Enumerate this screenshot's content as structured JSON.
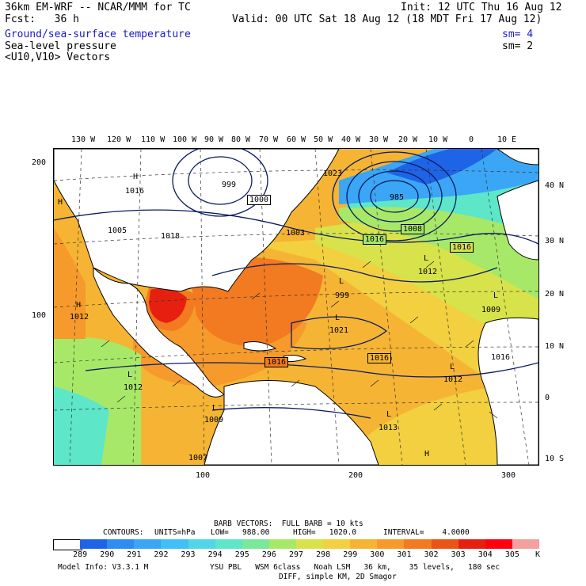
{
  "header": {
    "model_line": "36km EM-WRF -- NCAR/MMM for TC",
    "init_line": "Init: 12 UTC Thu 16 Aug 12",
    "fcst_line": "Fcst:   36 h",
    "valid_line": "Valid: 00 UTC Sat 18 Aug 12 (18 MDT Fri 17 Aug 12)",
    "field1": "Ground/sea-surface temperature",
    "field1_sm": "sm= 4",
    "field2": "Sea-level pressure",
    "field2_sm": "sm= 2",
    "field3": "<U10,V10> Vectors"
  },
  "top_lon_labels": [
    "130 W",
    "120 W",
    "110 W",
    "100 W",
    "90 W",
    "80 W",
    "70 W",
    "60 W",
    "50 W",
    "40 W",
    "30 W",
    "20 W",
    "10 W",
    "0",
    "10 E"
  ],
  "right_lat_labels": [
    "40 N",
    "30 N",
    "20 N",
    "10 N",
    "0",
    "10 S"
  ],
  "left_axis_labels": [
    "200",
    "100"
  ],
  "bottom_axis_labels": [
    "100",
    "200",
    "300"
  ],
  "pressure_labels": {
    "boxed": [
      "1000",
      "1008",
      "1016",
      "1016",
      "1016",
      "1016"
    ],
    "plain": [
      "1023",
      "985",
      "999",
      "1016",
      "1005",
      "1018",
      "1003",
      "1012",
      "1012",
      "999",
      "1021",
      "1009",
      "1016",
      "1012",
      "1013",
      "1012",
      "1009",
      "1007",
      "1012"
    ]
  },
  "highs_lows": [
    "H",
    "H",
    "H",
    "L",
    "L",
    "L",
    "L",
    "L",
    "L",
    "L",
    "L",
    "H",
    "L",
    "L",
    "L",
    "H"
  ],
  "barb_info": "BARB VECTORS:  FULL BARB = 10 kts",
  "contours_info": {
    "label": "CONTOURS:",
    "units": "UNITS=hPa",
    "low": "LOW=   988.00",
    "high": "HIGH=   1020.0",
    "interval": "INTERVAL=    4.0000"
  },
  "colorbar": {
    "unit": "K",
    "labels": [
      "289",
      "290",
      "291",
      "292",
      "293",
      "294",
      "295",
      "296",
      "297",
      "298",
      "299",
      "300",
      "301",
      "302",
      "303",
      "304",
      "305"
    ],
    "colors": [
      "#ffffff",
      "#1e64e6",
      "#2f8cf0",
      "#3aa6f5",
      "#40c0f5",
      "#50d6e8",
      "#5ee6c8",
      "#7ae89a",
      "#a8e868",
      "#d8e24a",
      "#f2d040",
      "#f6b434",
      "#f69a2c",
      "#f27a20",
      "#ea5418",
      "#e62010",
      "#ff0010",
      "#f4a0a0"
    ]
  },
  "footer": {
    "model_info": "Model Info: V3.3.1 M",
    "physics": "YSU PBL   WSM 6class   Noah LSM   36 km,    35 levels,   180 sec",
    "diff": "DIFF, simple KM, 2D Smagor"
  }
}
